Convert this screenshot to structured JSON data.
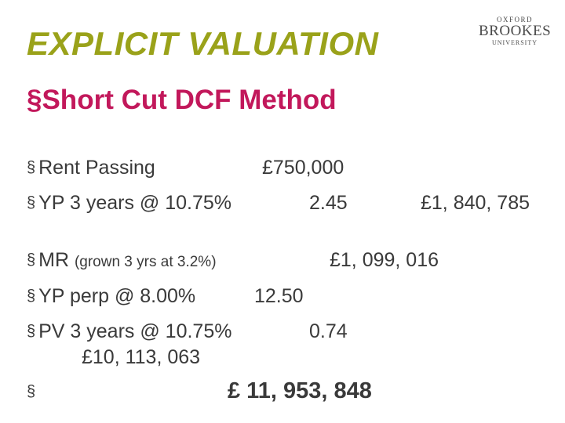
{
  "title": "EXPLICIT VALUATION",
  "logo": {
    "line1": "OXFORD",
    "line2": "BROOKES",
    "line3": "UNIVERSITY"
  },
  "subtitle": "§Short Cut DCF Method",
  "bullet_symbol": "§",
  "rows": {
    "rent_passing": {
      "label": "Rent Passing",
      "value": "£750,000"
    },
    "yp_3": {
      "label": "YP 3 years @ 10.75%",
      "multiplier": "2.45",
      "result": "£1, 840, 785"
    },
    "mr": {
      "label": "MR ",
      "note": "(grown 3 yrs at 3.2%)",
      "value": "£1, 099, 016"
    },
    "yp_perp": {
      "label": "YP perp @ 8.00%",
      "multiplier": "12.50"
    },
    "pv_3": {
      "label": "PV 3 years @ 10.75%",
      "multiplier": "0.74",
      "result": "£10, 113, 063"
    },
    "total": {
      "value": "£ 11, 953, 848"
    }
  }
}
